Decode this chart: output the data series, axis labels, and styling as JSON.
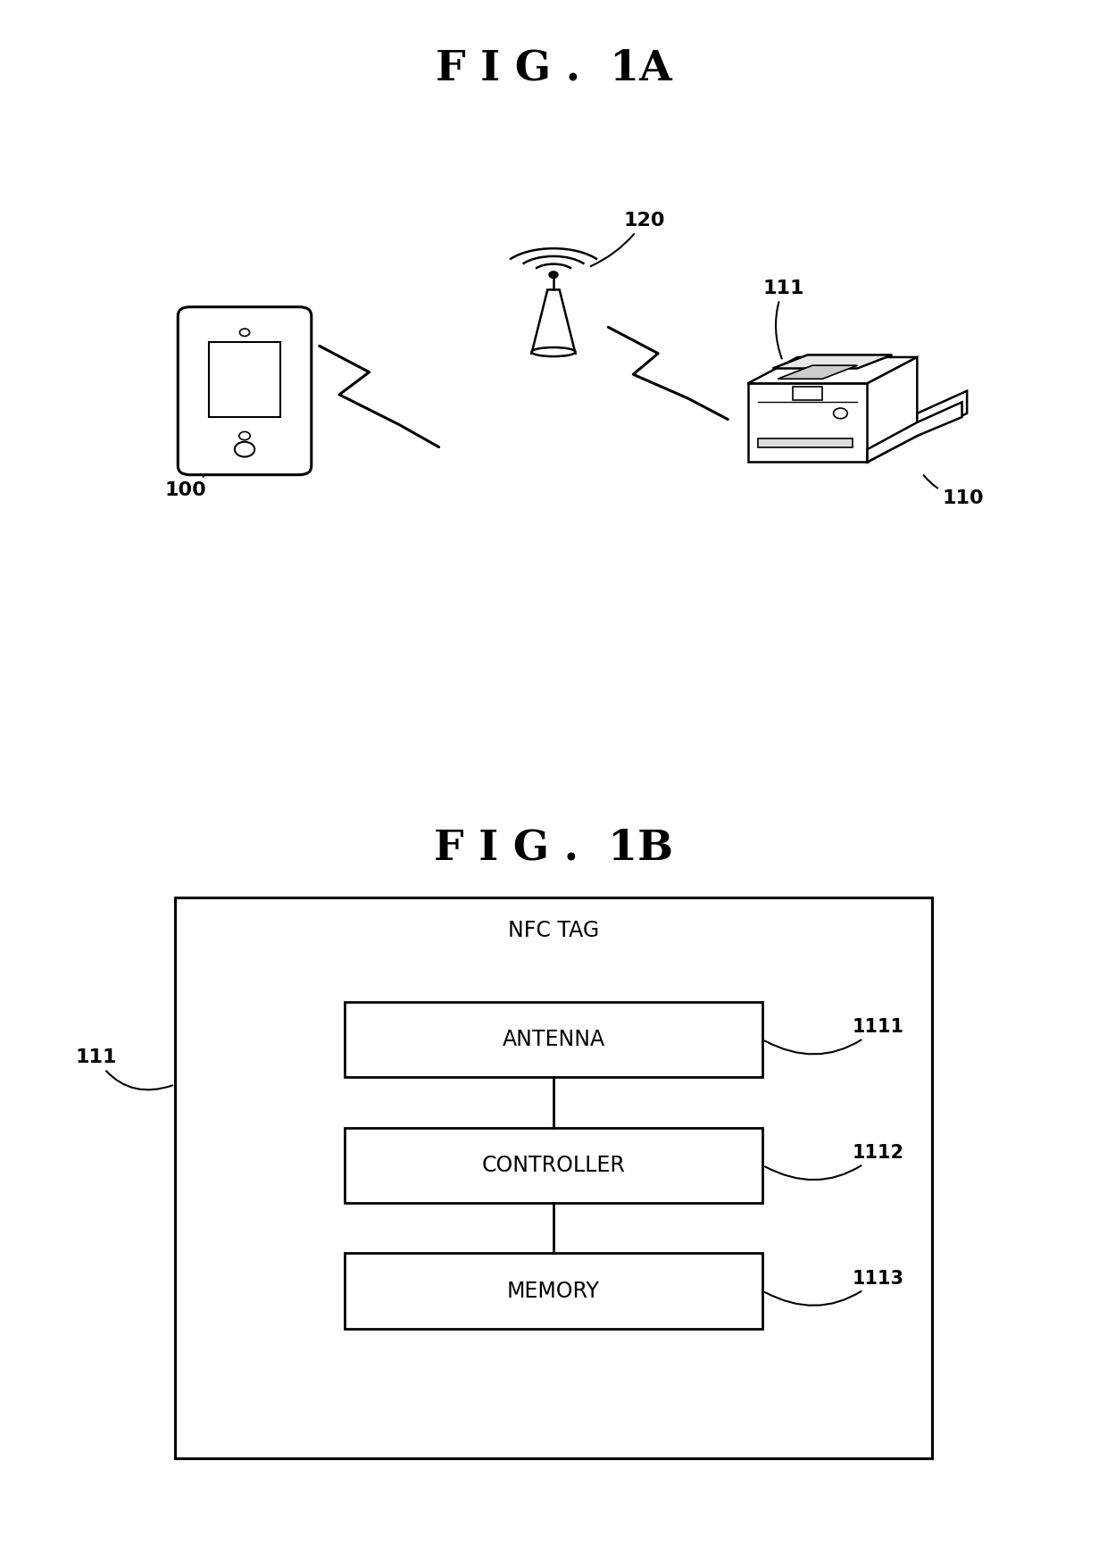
{
  "fig_title_1a": "F I G .  1A",
  "fig_title_1b": "F I G .  1B",
  "bg_color": "#ffffff",
  "label_100": "100",
  "label_110": "110",
  "label_111": "111",
  "label_120": "120",
  "label_1111": "1111",
  "label_1112": "1112",
  "label_1113": "1113",
  "text_nfc_tag": "NFC TAG",
  "text_antenna": "ANTENNA",
  "text_controller": "CONTROLLER",
  "text_memory": "MEMORY"
}
